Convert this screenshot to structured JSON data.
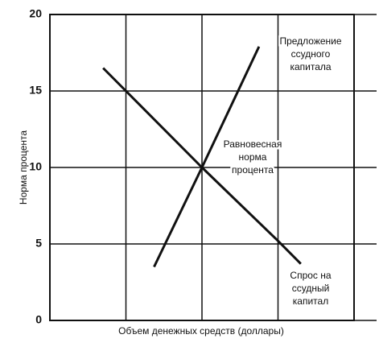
{
  "chart_data": {
    "type": "line",
    "x_label": "Объем денежных средств (доллары)",
    "y_label": "Норма процента",
    "xlim": [
      0,
      4
    ],
    "xgrid": [
      1,
      2,
      3
    ],
    "ylim": [
      0,
      20
    ],
    "yticks": [
      0,
      5,
      10,
      15,
      20
    ],
    "grid": true,
    "series": [
      {
        "color": "#111111",
        "x": [
          0.7,
          1,
          2,
          3,
          3.3
        ],
        "values": [
          16.5,
          15,
          10,
          5.2,
          3.7
        ]
      },
      {
        "color": "#111111",
        "x": [
          1.37,
          2,
          2.75
        ],
        "values": [
          3.5,
          10,
          17.9
        ]
      }
    ],
    "annotations": [
      {
        "lines": [
          "Предложение",
          "ссудного",
          "капитала"
        ]
      },
      {
        "lines": [
          "Равновесная",
          "норма",
          "процента"
        ]
      },
      {
        "lines": [
          "Спрос на",
          "ссудный",
          "капитал"
        ]
      }
    ]
  }
}
